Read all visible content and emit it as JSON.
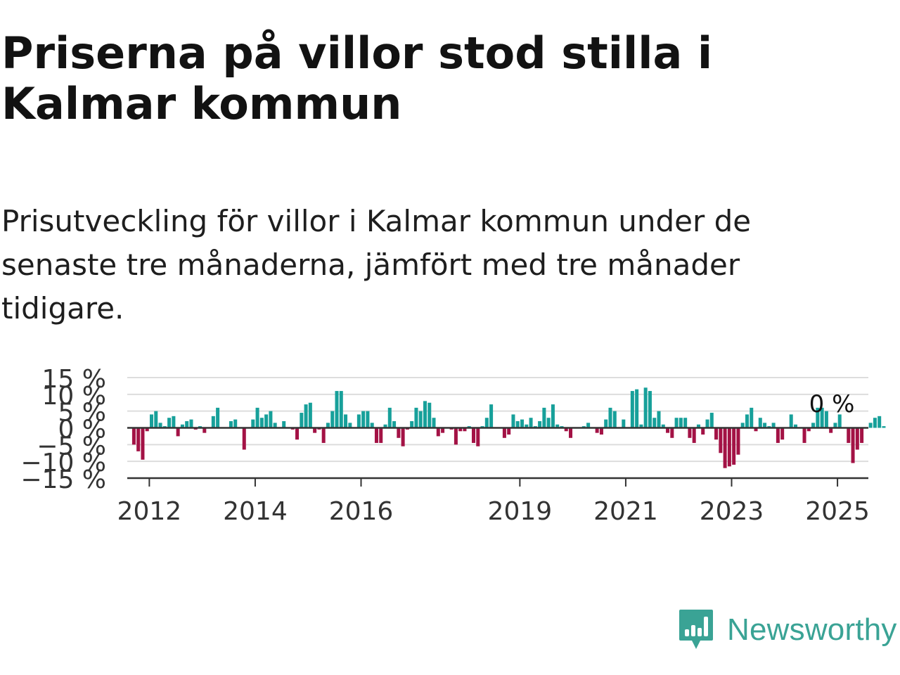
{
  "title": "Priserna på villor stod stilla i Kalmar kommun",
  "subtitle": "Prisutveckling för villor i Kalmar kommun under de senaste tre månaderna, jämfört med tre månader tidigare.",
  "brand": {
    "name": "Newsworthy",
    "color": "#3aa395",
    "icon": "newsworthy-logo-icon"
  },
  "colors": {
    "positive": "#17a09a",
    "negative": "#a31245",
    "grid": "#dddddd",
    "axis": "#333333"
  },
  "chart_data": {
    "type": "bar",
    "x_start": "2011-08",
    "x_end": "2025-08",
    "y_ticks": [
      "15 %",
      "10 %",
      "5 %",
      "0 %",
      "−5 %",
      "−10 %",
      "−15 %"
    ],
    "y_tick_values": [
      15,
      10,
      5,
      0,
      -5,
      -10,
      -15
    ],
    "ylim": [
      -15,
      15
    ],
    "x_ticks": [
      {
        "label": "2012",
        "date": "2012-01"
      },
      {
        "label": "2014",
        "date": "2014-01"
      },
      {
        "label": "2016",
        "date": "2016-01"
      },
      {
        "label": "2019",
        "date": "2019-01"
      },
      {
        "label": "2021",
        "date": "2021-01"
      },
      {
        "label": "2023",
        "date": "2023-01"
      },
      {
        "label": "2025",
        "date": "2025-01"
      }
    ],
    "last_value_label": "0 %",
    "series": [
      {
        "values": [
          0,
          -5,
          -7,
          -9.5,
          -1,
          4,
          5,
          1.5,
          0.5,
          3,
          3.5,
          -2.5,
          1,
          2,
          2.5,
          -0.5,
          0.5,
          -1.5,
          0,
          3.5,
          6,
          0,
          0,
          2,
          2.5,
          0,
          -6.5,
          0,
          2.5,
          6,
          3,
          4,
          5,
          1.5,
          0,
          2,
          0,
          -0.5,
          -3.5,
          4.5,
          7,
          7.5,
          -1.5,
          -0.5,
          -4.5,
          1.5,
          5,
          11,
          11,
          4,
          1.5,
          0,
          4,
          5,
          5,
          1.5,
          -4.5,
          -4.5,
          1,
          6,
          2,
          -3,
          -5.5,
          -0.5,
          2,
          6,
          5,
          8,
          7.5,
          3,
          -2.5,
          -1.5,
          0,
          -0.5,
          -5,
          -1,
          -1,
          0.5,
          -4.5,
          -5.5,
          0.5,
          3,
          7,
          0,
          0,
          -3,
          -2,
          4,
          2,
          2.5,
          1,
          3,
          0.5,
          2,
          6,
          3,
          7,
          1,
          0.5,
          -1,
          -3,
          0,
          0,
          0.5,
          1.5,
          0,
          -1.5,
          -2,
          2.5,
          6,
          5,
          0,
          2.5,
          0,
          11,
          11.5,
          1,
          12,
          11,
          3,
          5,
          1,
          -1.5,
          -3,
          3,
          3,
          3,
          -3,
          -4.5,
          1,
          -2,
          2.5,
          4.5,
          -3.5,
          -7.5,
          -12,
          -11.5,
          -11,
          -8,
          1.5,
          4,
          6,
          -1,
          3,
          1.5,
          0.5,
          1.5,
          -4.5,
          -3.5,
          0,
          4,
          1,
          0,
          -4.5,
          -1,
          1.5,
          6,
          6,
          5,
          -1.5,
          1.5,
          4,
          0,
          -4.5,
          -10.5,
          -6.5,
          -4.5,
          0,
          1.5,
          3,
          3.5,
          0.5
        ]
      }
    ]
  }
}
